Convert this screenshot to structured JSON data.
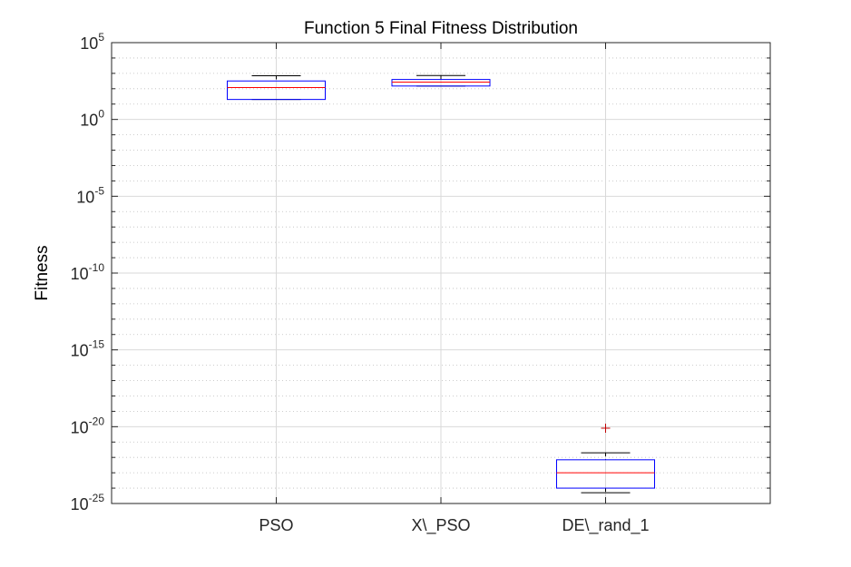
{
  "chart_data": {
    "type": "box",
    "title": "Function 5 Final Fitness Distribution",
    "xlabel": "",
    "ylabel": "Fitness",
    "yscale": "log",
    "ylim_exponents": [
      -25,
      5
    ],
    "ytick_exponents": [
      -25,
      -20,
      -15,
      -10,
      -5,
      0,
      5
    ],
    "ytick_base": "10",
    "categories": [
      "PSO",
      "X\\_PSO",
      "DE\\_rand_1"
    ],
    "boxes": [
      {
        "name": "PSO",
        "whisker_low": 20,
        "q1": 20,
        "median": 120,
        "q3": 320,
        "whisker_high": 700,
        "outliers": []
      },
      {
        "name": "X\\_PSO",
        "whisker_low": 150,
        "q1": 150,
        "median": 270,
        "q3": 400,
        "whisker_high": 720,
        "outliers": []
      },
      {
        "name": "DE\\_rand_1",
        "whisker_low": 5e-25,
        "q1": 1e-24,
        "median": 1e-23,
        "q3": 7e-23,
        "whisker_high": 2e-22,
        "outliers": [
          8e-21
        ]
      }
    ],
    "colors": {
      "box": "#0000ff",
      "median": "#ff0000",
      "whisker": "#000000",
      "outlier": "#c00000"
    }
  }
}
